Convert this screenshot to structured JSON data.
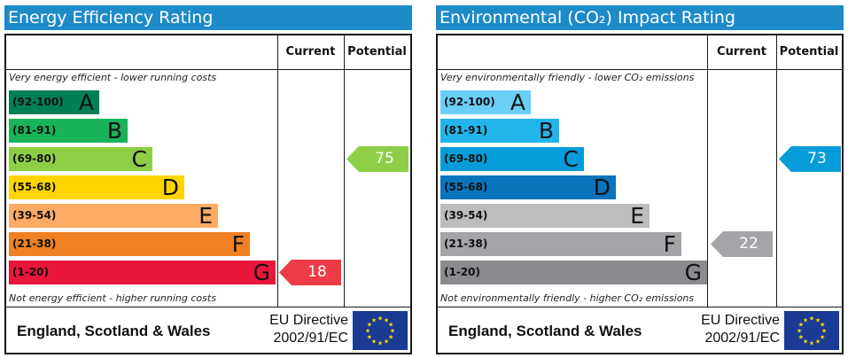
{
  "energy": {
    "title": "Energy Efficiency Rating",
    "col_current": "Current",
    "col_potential": "Potential",
    "top_note": "Very energy efficient - lower running costs",
    "bottom_note": "Not energy efficient - higher running costs",
    "bands": [
      {
        "range": "(92-100)",
        "letter": "A",
        "color": "#008054"
      },
      {
        "range": "(81-91)",
        "letter": "B",
        "color": "#19b459"
      },
      {
        "range": "(69-80)",
        "letter": "C",
        "color": "#8dce46"
      },
      {
        "range": "(55-68)",
        "letter": "D",
        "color": "#ffd500"
      },
      {
        "range": "(39-54)",
        "letter": "E",
        "color": "#fcaa65"
      },
      {
        "range": "(21-38)",
        "letter": "F",
        "color": "#ef8023"
      },
      {
        "range": "(1-20)",
        "letter": "G",
        "color": "#e9153b"
      }
    ],
    "current": {
      "value": "18",
      "band": "G",
      "color": "#ee3b47"
    },
    "potential": {
      "value": "75",
      "band": "C",
      "color": "#8dce46"
    },
    "footer_country": "England, Scotland & Wales",
    "footer_directive_line1": "EU Directive",
    "footer_directive_line2": "2002/91/EC"
  },
  "environmental": {
    "title": "Environmental (CO₂) Impact Rating",
    "col_current": "Current",
    "col_potential": "Potential",
    "top_note": "Very environmentally friendly - lower CO₂ emissions",
    "bottom_note": "Not environmentally friendly - higher CO₂ emissions",
    "bands": [
      {
        "range": "(92-100)",
        "letter": "A",
        "color": "#6acff6"
      },
      {
        "range": "(81-91)",
        "letter": "B",
        "color": "#22b5eb"
      },
      {
        "range": "(69-80)",
        "letter": "C",
        "color": "#069cd9"
      },
      {
        "range": "(55-68)",
        "letter": "D",
        "color": "#0a74bc"
      },
      {
        "range": "(39-54)",
        "letter": "E",
        "color": "#bbbdbf"
      },
      {
        "range": "(21-38)",
        "letter": "F",
        "color": "#a3a5a8"
      },
      {
        "range": "(1-20)",
        "letter": "G",
        "color": "#898b8e"
      }
    ],
    "current": {
      "value": "22",
      "band": "F",
      "color": "#a3a5a8"
    },
    "potential": {
      "value": "73",
      "band": "C",
      "color": "#069cd9"
    },
    "footer_country": "England, Scotland & Wales",
    "footer_directive_line1": "EU Directive",
    "footer_directive_line2": "2002/91/EC"
  }
}
